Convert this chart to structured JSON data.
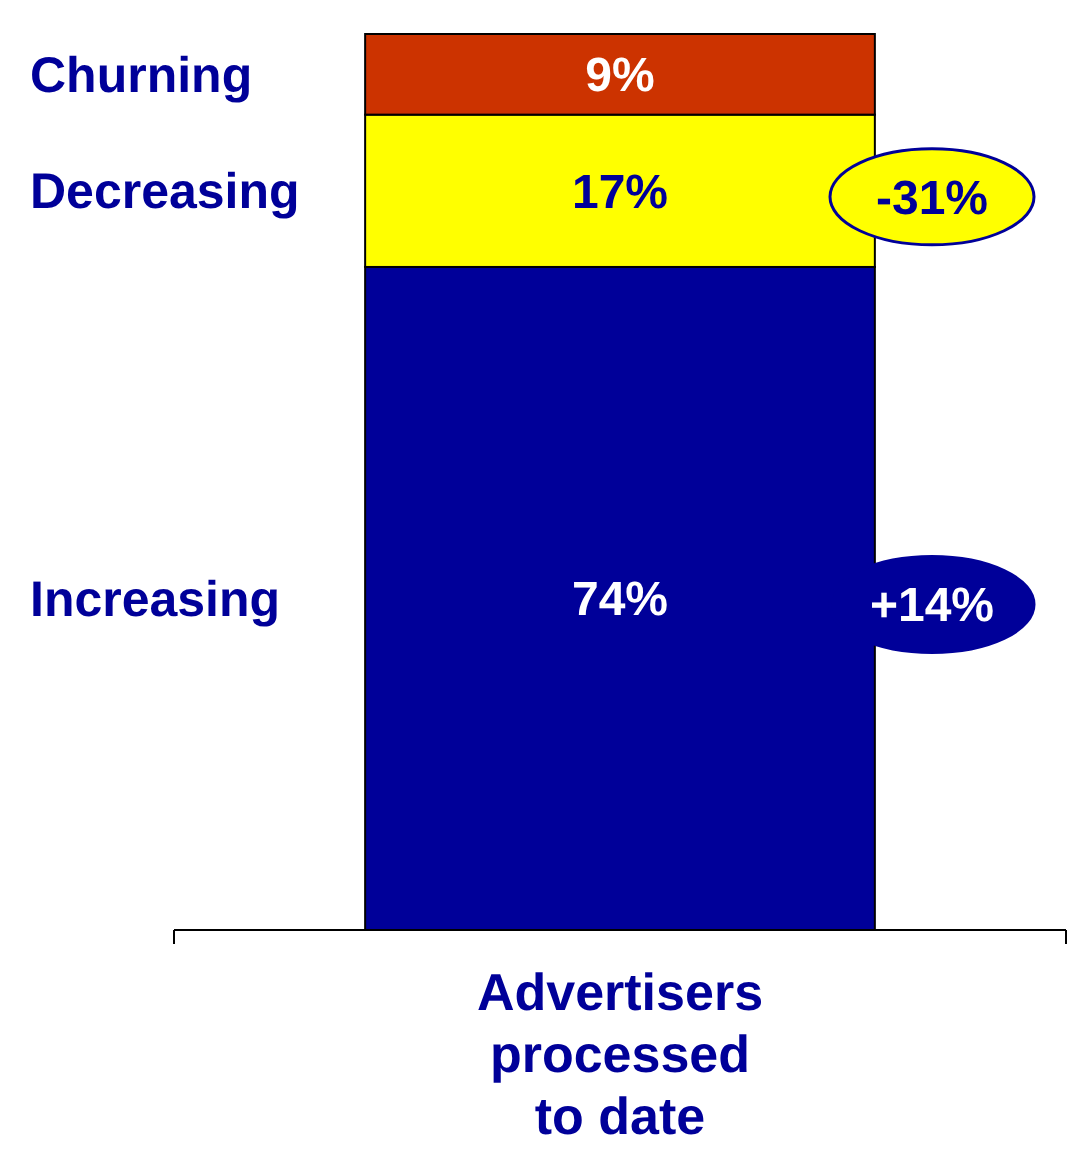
{
  "chart_data": {
    "type": "bar",
    "stacked": true,
    "categories": [
      null
    ],
    "xlabel": "Advertisers processed to date",
    "series": [
      {
        "name": "Increasing",
        "color": "#000099",
        "values": [
          74
        ],
        "value_labels": [
          "74%"
        ]
      },
      {
        "name": "Decreasing",
        "color": "#ffff00",
        "values": [
          17
        ],
        "value_labels": [
          "17%"
        ]
      },
      {
        "name": "Churning",
        "color": "#cc3300",
        "values": [
          9
        ],
        "value_labels": [
          "9%"
        ]
      }
    ],
    "annotations": [
      "-31%",
      "+14%"
    ]
  }
}
